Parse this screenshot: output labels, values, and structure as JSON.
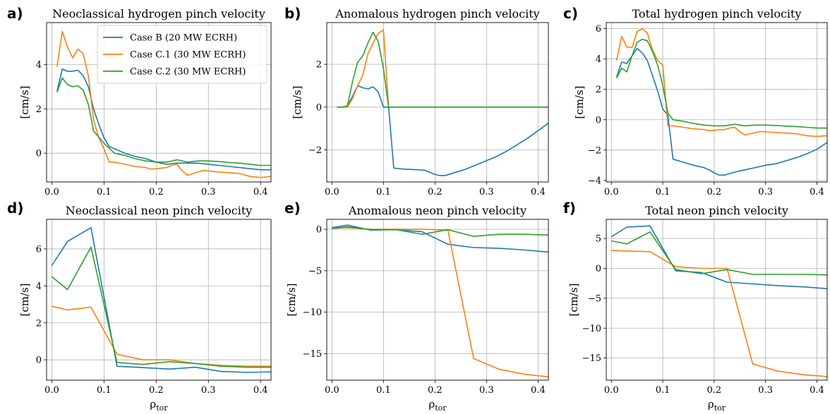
{
  "series_colors": [
    "#1f77b4",
    "#ff7f0e",
    "#2ca02c"
  ],
  "legend": [
    "Case B (20 MW ECRH)",
    "Case C.1 (30 MW ECRH)",
    "Case C.2 (30 MW ECRH)"
  ],
  "chart_data": [
    {
      "type": "line",
      "panel": "a)",
      "title": "Neoclassical hydrogen pinch velocity",
      "xlabel": "",
      "ylabel": "[cm/s]",
      "grid": true,
      "legend": "top-right",
      "xlim": [
        -0.01,
        0.42
      ],
      "ylim": [
        -1.3,
        5.9
      ],
      "xticks": [
        0.0,
        0.1,
        0.2,
        0.3,
        0.4
      ],
      "xtick_labels": [
        "0.0",
        "0.1",
        "0.2",
        "0.3",
        "0.4"
      ],
      "yticks": [
        0,
        2,
        4
      ],
      "ytick_labels": [
        "0",
        "2",
        "4"
      ],
      "series": [
        {
          "name": "Case B (20 MW ECRH)",
          "x": [
            0.01,
            0.02,
            0.03,
            0.04,
            0.05,
            0.06,
            0.07,
            0.08,
            0.09,
            0.1,
            0.11,
            0.12,
            0.14,
            0.16,
            0.18,
            0.2,
            0.22,
            0.24,
            0.26,
            0.28,
            0.3,
            0.32,
            0.34,
            0.36,
            0.38,
            0.4,
            0.42
          ],
          "y": [
            2.8,
            3.8,
            3.7,
            3.7,
            3.75,
            3.5,
            3.0,
            2.0,
            1.3,
            0.7,
            0.3,
            0.2,
            0.0,
            -0.15,
            -0.25,
            -0.4,
            -0.5,
            -0.45,
            -0.45,
            -0.45,
            -0.5,
            -0.55,
            -0.6,
            -0.65,
            -0.7,
            -0.75,
            -0.75
          ]
        },
        {
          "name": "Case C.1 (30 MW ECRH)",
          "x": [
            0.01,
            0.02,
            0.03,
            0.04,
            0.05,
            0.06,
            0.07,
            0.08,
            0.09,
            0.1,
            0.11,
            0.12,
            0.14,
            0.16,
            0.18,
            0.19,
            0.2,
            0.22,
            0.23,
            0.24,
            0.25,
            0.26,
            0.28,
            0.29,
            0.3,
            0.32,
            0.34,
            0.36,
            0.38,
            0.4,
            0.42
          ],
          "y": [
            3.9,
            5.5,
            4.8,
            4.3,
            4.7,
            4.5,
            3.5,
            1.5,
            0.7,
            0.2,
            -0.4,
            -0.4,
            -0.5,
            -0.6,
            -0.65,
            -0.72,
            -0.7,
            -0.65,
            -0.55,
            -0.5,
            -0.8,
            -1.0,
            -0.85,
            -0.78,
            -0.8,
            -0.85,
            -0.88,
            -0.92,
            -1.05,
            -1.1,
            -1.05
          ]
        },
        {
          "name": "Case C.2 (30 MW ECRH)",
          "x": [
            0.01,
            0.02,
            0.03,
            0.04,
            0.05,
            0.06,
            0.07,
            0.08,
            0.1,
            0.12,
            0.14,
            0.16,
            0.18,
            0.2,
            0.22,
            0.24,
            0.26,
            0.28,
            0.3,
            0.32,
            0.34,
            0.36,
            0.38,
            0.4,
            0.42
          ],
          "y": [
            2.75,
            3.4,
            3.1,
            3.0,
            3.05,
            2.85,
            2.2,
            1.0,
            0.45,
            0.0,
            -0.1,
            -0.25,
            -0.35,
            -0.4,
            -0.4,
            -0.3,
            -0.4,
            -0.35,
            -0.35,
            -0.38,
            -0.42,
            -0.45,
            -0.5,
            -0.55,
            -0.55
          ]
        }
      ]
    },
    {
      "type": "line",
      "panel": "b)",
      "title": "Anomalous hydrogen pinch velocity",
      "xlabel": "",
      "ylabel": "[cm/s]",
      "grid": true,
      "xlim": [
        -0.01,
        0.42
      ],
      "ylim": [
        -3.5,
        3.95
      ],
      "xticks": [
        0.0,
        0.1,
        0.2,
        0.3,
        0.4
      ],
      "xtick_labels": [
        "0.0",
        "0.1",
        "0.2",
        "0.3",
        "0.4"
      ],
      "yticks": [
        -2,
        0,
        2
      ],
      "ytick_labels": [
        "−2",
        "0",
        "2"
      ],
      "series": [
        {
          "name": "Case B (20 MW ECRH)",
          "x": [
            0.01,
            0.02,
            0.03,
            0.04,
            0.05,
            0.06,
            0.07,
            0.08,
            0.09,
            0.1,
            0.11,
            0.12,
            0.14,
            0.16,
            0.18,
            0.2,
            0.21,
            0.22,
            0.24,
            0.26,
            0.28,
            0.3,
            0.32,
            0.34,
            0.36,
            0.38,
            0.4,
            0.42
          ],
          "y": [
            0.0,
            0.0,
            0.05,
            0.5,
            1.0,
            0.9,
            0.85,
            0.95,
            0.7,
            0.0,
            0.0,
            -2.85,
            -2.9,
            -2.92,
            -2.95,
            -3.15,
            -3.2,
            -3.2,
            -3.05,
            -2.9,
            -2.7,
            -2.5,
            -2.3,
            -2.05,
            -1.75,
            -1.45,
            -1.1,
            -0.75
          ]
        },
        {
          "name": "Case C.1 (30 MW ECRH)",
          "x": [
            0.01,
            0.02,
            0.03,
            0.04,
            0.05,
            0.06,
            0.07,
            0.08,
            0.09,
            0.1,
            0.11,
            0.12,
            0.2,
            0.3,
            0.42
          ],
          "y": [
            0.0,
            0.0,
            0.0,
            0.4,
            1.0,
            1.5,
            2.5,
            3.0,
            3.45,
            3.6,
            0.0,
            0.0,
            0.0,
            0.0,
            0.0
          ]
        },
        {
          "name": "Case C.2 (30 MW ECRH)",
          "x": [
            0.01,
            0.02,
            0.03,
            0.04,
            0.05,
            0.06,
            0.07,
            0.08,
            0.09,
            0.1,
            0.11,
            0.2,
            0.3,
            0.42
          ],
          "y": [
            0.0,
            0.0,
            0.05,
            1.2,
            2.1,
            2.4,
            3.0,
            3.5,
            3.05,
            1.8,
            0.0,
            0.0,
            0.0,
            0.0
          ]
        }
      ]
    },
    {
      "type": "line",
      "panel": "c)",
      "title": "Total hydrogen pinch velocity",
      "xlabel": "",
      "ylabel": "[cm/s]",
      "grid": true,
      "xlim": [
        -0.01,
        0.42
      ],
      "ylim": [
        -4.1,
        6.4
      ],
      "xticks": [
        0.0,
        0.1,
        0.2,
        0.3,
        0.4
      ],
      "xtick_labels": [
        "0.0",
        "0.1",
        "0.2",
        "0.3",
        "0.4"
      ],
      "yticks": [
        -4,
        -2,
        0,
        2,
        4,
        6
      ],
      "ytick_labels": [
        "−4",
        "−2",
        "0",
        "2",
        "4",
        "6"
      ],
      "series": [
        {
          "name": "Case B (20 MW ECRH)",
          "x": [
            0.01,
            0.02,
            0.03,
            0.04,
            0.05,
            0.06,
            0.07,
            0.08,
            0.09,
            0.1,
            0.11,
            0.12,
            0.14,
            0.16,
            0.18,
            0.19,
            0.2,
            0.21,
            0.22,
            0.24,
            0.26,
            0.28,
            0.3,
            0.32,
            0.34,
            0.36,
            0.38,
            0.4,
            0.42
          ],
          "y": [
            2.8,
            3.8,
            3.7,
            4.2,
            4.7,
            4.4,
            3.9,
            2.9,
            1.9,
            0.7,
            0.3,
            -2.6,
            -2.8,
            -3.0,
            -3.15,
            -3.3,
            -3.5,
            -3.65,
            -3.65,
            -3.45,
            -3.3,
            -3.15,
            -3.0,
            -2.9,
            -2.7,
            -2.5,
            -2.25,
            -1.95,
            -1.5
          ]
        },
        {
          "name": "Case C.1 (30 MW ECRH)",
          "x": [
            0.01,
            0.02,
            0.03,
            0.04,
            0.05,
            0.06,
            0.07,
            0.08,
            0.09,
            0.1,
            0.11,
            0.12,
            0.14,
            0.16,
            0.18,
            0.19,
            0.2,
            0.22,
            0.23,
            0.24,
            0.25,
            0.26,
            0.28,
            0.29,
            0.3,
            0.32,
            0.34,
            0.36,
            0.38,
            0.4,
            0.42
          ],
          "y": [
            3.9,
            5.5,
            4.8,
            4.75,
            5.8,
            6.0,
            5.7,
            4.6,
            3.9,
            3.6,
            -0.4,
            -0.4,
            -0.5,
            -0.6,
            -0.65,
            -0.72,
            -0.7,
            -0.65,
            -0.55,
            -0.5,
            -0.8,
            -1.0,
            -0.85,
            -0.78,
            -0.8,
            -0.85,
            -0.88,
            -0.92,
            -1.05,
            -1.1,
            -1.05
          ]
        },
        {
          "name": "Case C.2 (30 MW ECRH)",
          "x": [
            0.01,
            0.02,
            0.03,
            0.04,
            0.05,
            0.06,
            0.07,
            0.08,
            0.09,
            0.1,
            0.11,
            0.12,
            0.14,
            0.16,
            0.18,
            0.2,
            0.22,
            0.24,
            0.26,
            0.28,
            0.3,
            0.32,
            0.34,
            0.36,
            0.38,
            0.4,
            0.42
          ],
          "y": [
            2.75,
            3.4,
            3.15,
            4.2,
            5.1,
            5.3,
            5.2,
            4.5,
            3.6,
            2.25,
            0.45,
            0.0,
            -0.1,
            -0.25,
            -0.35,
            -0.4,
            -0.4,
            -0.3,
            -0.4,
            -0.35,
            -0.35,
            -0.38,
            -0.42,
            -0.45,
            -0.5,
            -0.55,
            -0.55
          ]
        }
      ]
    },
    {
      "type": "line",
      "panel": "d)",
      "title": "Neoclassical neon pinch velocity",
      "xlabel": "ρ_tor",
      "ylabel": "[cm/s]",
      "grid": true,
      "xlim": [
        -0.01,
        0.42
      ],
      "ylim": [
        -1.1,
        7.6
      ],
      "xticks": [
        0.0,
        0.1,
        0.2,
        0.3,
        0.4
      ],
      "xtick_labels": [
        "0.0",
        "0.1",
        "0.2",
        "0.3",
        "0.4"
      ],
      "yticks": [
        0,
        2,
        4,
        6
      ],
      "ytick_labels": [
        "0",
        "2",
        "4",
        "6"
      ],
      "series": [
        {
          "name": "Case B (20 MW ECRH)",
          "x": [
            0.0,
            0.03,
            0.075,
            0.125,
            0.175,
            0.225,
            0.275,
            0.325,
            0.375,
            0.42
          ],
          "y": [
            5.1,
            6.4,
            7.15,
            -0.35,
            -0.42,
            -0.5,
            -0.4,
            -0.63,
            -0.68,
            -0.65
          ]
        },
        {
          "name": "Case C.1 (30 MW ECRH)",
          "x": [
            0.0,
            0.03,
            0.075,
            0.125,
            0.175,
            0.225,
            0.275,
            0.325,
            0.375,
            0.42
          ],
          "y": [
            2.9,
            2.7,
            2.85,
            0.3,
            0.0,
            0.0,
            -0.2,
            -0.3,
            -0.35,
            -0.35
          ]
        },
        {
          "name": "Case C.2 (30 MW ECRH)",
          "x": [
            0.0,
            0.03,
            0.075,
            0.125,
            0.175,
            0.225,
            0.275,
            0.325,
            0.375,
            0.42
          ],
          "y": [
            4.5,
            3.8,
            6.1,
            -0.15,
            -0.25,
            -0.1,
            -0.2,
            -0.35,
            -0.4,
            -0.4
          ]
        }
      ]
    },
    {
      "type": "line",
      "panel": "e)",
      "title": "Anomalous neon pinch velocity",
      "xlabel": "ρ_tor",
      "ylabel": "[cm/s]",
      "grid": true,
      "xlim": [
        -0.01,
        0.42
      ],
      "ylim": [
        -18.2,
        1.2
      ],
      "xticks": [
        0.0,
        0.1,
        0.2,
        0.3,
        0.4
      ],
      "xtick_labels": [
        "0.0",
        "0.1",
        "0.2",
        "0.3",
        "0.4"
      ],
      "yticks": [
        -15,
        -10,
        -5,
        0
      ],
      "ytick_labels": [
        "−15",
        "−10",
        "−5",
        "0"
      ],
      "series": [
        {
          "name": "Case B (20 MW ECRH)",
          "x": [
            0.0,
            0.03,
            0.075,
            0.125,
            0.175,
            0.225,
            0.275,
            0.325,
            0.375,
            0.42
          ],
          "y": [
            0.2,
            0.5,
            -0.1,
            -0.05,
            -0.3,
            -1.8,
            -2.2,
            -2.3,
            -2.5,
            -2.75
          ]
        },
        {
          "name": "Case C.1 (30 MW ECRH)",
          "x": [
            0.0,
            0.03,
            0.075,
            0.125,
            0.175,
            0.225,
            0.275,
            0.325,
            0.375,
            0.42
          ],
          "y": [
            0.1,
            0.2,
            0.0,
            0.0,
            0.0,
            -0.1,
            -15.6,
            -16.9,
            -17.5,
            -17.8
          ]
        },
        {
          "name": "Case C.2 (30 MW ECRH)",
          "x": [
            0.0,
            0.03,
            0.075,
            0.125,
            0.175,
            0.225,
            0.275,
            0.325,
            0.375,
            0.42
          ],
          "y": [
            0.1,
            0.3,
            -0.05,
            -0.05,
            -0.6,
            -0.05,
            -0.85,
            -0.6,
            -0.6,
            -0.7
          ]
        }
      ]
    },
    {
      "type": "line",
      "panel": "f)",
      "title": "Total neon pinch velocity",
      "xlabel": "ρ_tor",
      "ylabel": "[cm/s]",
      "grid": true,
      "xlim": [
        -0.01,
        0.42
      ],
      "ylim": [
        -18.7,
        8.2
      ],
      "xticks": [
        0.0,
        0.1,
        0.2,
        0.3,
        0.4
      ],
      "xtick_labels": [
        "0.0",
        "0.1",
        "0.2",
        "0.3",
        "0.4"
      ],
      "yticks": [
        -15,
        -10,
        -5,
        0,
        5
      ],
      "ytick_labels": [
        "−15",
        "−10",
        "−5",
        "0",
        "5"
      ],
      "series": [
        {
          "name": "Case B (20 MW ECRH)",
          "x": [
            0.0,
            0.03,
            0.075,
            0.125,
            0.175,
            0.225,
            0.275,
            0.325,
            0.375,
            0.42
          ],
          "y": [
            5.3,
            6.9,
            7.1,
            -0.4,
            -0.7,
            -2.3,
            -2.6,
            -2.9,
            -3.1,
            -3.4
          ]
        },
        {
          "name": "Case C.1 (30 MW ECRH)",
          "x": [
            0.0,
            0.03,
            0.075,
            0.125,
            0.175,
            0.225,
            0.275,
            0.325,
            0.375,
            0.42
          ],
          "y": [
            3.0,
            2.9,
            2.8,
            0.3,
            0.0,
            0.0,
            -16.0,
            -17.2,
            -17.8,
            -18.1
          ]
        },
        {
          "name": "Case C.2 (30 MW ECRH)",
          "x": [
            0.0,
            0.03,
            0.075,
            0.125,
            0.175,
            0.225,
            0.275,
            0.325,
            0.375,
            0.42
          ],
          "y": [
            4.6,
            4.1,
            6.1,
            -0.2,
            -0.9,
            -0.2,
            -1.0,
            -1.0,
            -1.0,
            -1.1
          ]
        }
      ]
    }
  ]
}
